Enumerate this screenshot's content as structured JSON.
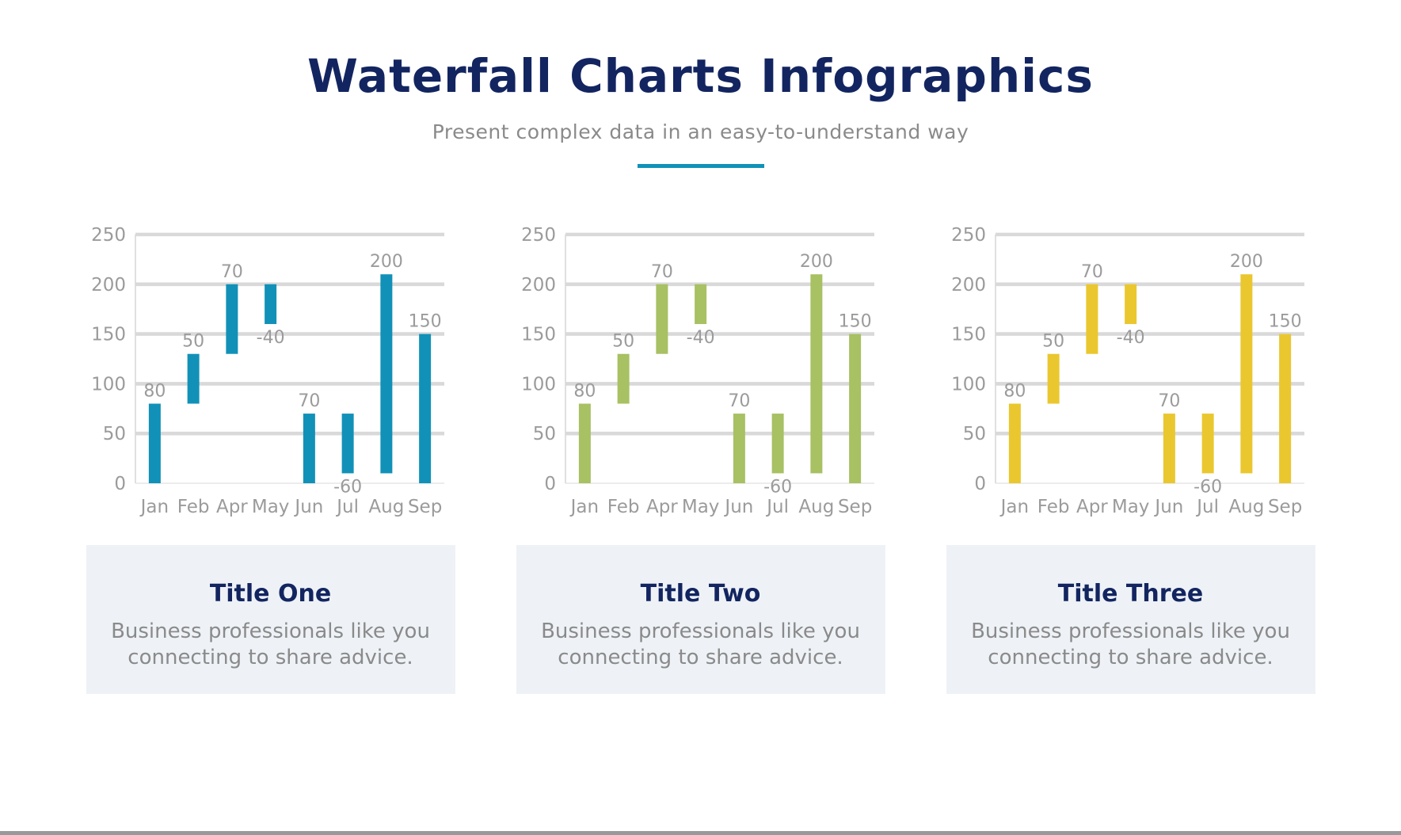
{
  "page": {
    "title": "Waterfall Charts Infographics",
    "subtitle": "Present complex data in an easy-to-understand way"
  },
  "colors": {
    "title_navy": "#132560",
    "subtitle_gray": "#8a8a8a",
    "accent_teal": "#1192b8",
    "gridline": "#d9d9d9",
    "zero_line": "#e6e6e6",
    "axis_text": "#9b9b9b",
    "chart1_bar": "#1191b8",
    "chart2_bar": "#a7c163",
    "chart3_bar": "#eac72e",
    "card_bg": "#eef2f6",
    "card_title": "#132560",
    "card_text": "#8a8a8a",
    "bottom_strip": "#98999b"
  },
  "chart_data": [
    {
      "type": "bar",
      "subtype": "waterfall",
      "title": "",
      "xlabel": "",
      "ylabel": "",
      "ylim": [
        0,
        250
      ],
      "y_ticks": [
        0,
        50,
        100,
        150,
        200,
        250
      ],
      "grid": true,
      "legend": "none",
      "bar_color": "#1191b8",
      "categories": [
        "Jan",
        "Feb",
        "Apr",
        "May",
        "Jun",
        "Jul",
        "Aug",
        "Sep"
      ],
      "bars": [
        {
          "category": "Jan",
          "start": 0,
          "end": 80,
          "delta": 80,
          "label": "80",
          "label_position": "above"
        },
        {
          "category": "Feb",
          "start": 80,
          "end": 130,
          "delta": 50,
          "label": "50",
          "label_position": "above"
        },
        {
          "category": "Apr",
          "start": 130,
          "end": 200,
          "delta": 70,
          "label": "70",
          "label_position": "above"
        },
        {
          "category": "May",
          "start": 160,
          "end": 200,
          "delta": -40,
          "label": "-40",
          "label_position": "below"
        },
        {
          "category": "Jun",
          "start": 0,
          "end": 70,
          "delta": 70,
          "label": "70",
          "label_position": "above"
        },
        {
          "category": "Jul",
          "start": 10,
          "end": 70,
          "delta": -60,
          "label": "-60",
          "label_position": "below"
        },
        {
          "category": "Aug",
          "start": 10,
          "end": 210,
          "delta": 200,
          "label": "200",
          "label_position": "above"
        },
        {
          "category": "Sep",
          "start": 0,
          "end": 150,
          "delta": 150,
          "label": "150",
          "label_position": "above"
        }
      ]
    },
    {
      "type": "bar",
      "subtype": "waterfall",
      "title": "",
      "xlabel": "",
      "ylabel": "",
      "ylim": [
        0,
        250
      ],
      "y_ticks": [
        0,
        50,
        100,
        150,
        200,
        250
      ],
      "grid": true,
      "legend": "none",
      "bar_color": "#a7c163",
      "categories": [
        "Jan",
        "Feb",
        "Apr",
        "May",
        "Jun",
        "Jul",
        "Aug",
        "Sep"
      ],
      "bars": [
        {
          "category": "Jan",
          "start": 0,
          "end": 80,
          "delta": 80,
          "label": "80",
          "label_position": "above"
        },
        {
          "category": "Feb",
          "start": 80,
          "end": 130,
          "delta": 50,
          "label": "50",
          "label_position": "above"
        },
        {
          "category": "Apr",
          "start": 130,
          "end": 200,
          "delta": 70,
          "label": "70",
          "label_position": "above"
        },
        {
          "category": "May",
          "start": 160,
          "end": 200,
          "delta": -40,
          "label": "-40",
          "label_position": "below"
        },
        {
          "category": "Jun",
          "start": 0,
          "end": 70,
          "delta": 70,
          "label": "70",
          "label_position": "above"
        },
        {
          "category": "Jul",
          "start": 10,
          "end": 70,
          "delta": -60,
          "label": "-60",
          "label_position": "below"
        },
        {
          "category": "Aug",
          "start": 10,
          "end": 210,
          "delta": 200,
          "label": "200",
          "label_position": "above"
        },
        {
          "category": "Sep",
          "start": 0,
          "end": 150,
          "delta": 150,
          "label": "150",
          "label_position": "above"
        }
      ]
    },
    {
      "type": "bar",
      "subtype": "waterfall",
      "title": "",
      "xlabel": "",
      "ylabel": "",
      "ylim": [
        0,
        250
      ],
      "y_ticks": [
        0,
        50,
        100,
        150,
        200,
        250
      ],
      "grid": true,
      "legend": "none",
      "bar_color": "#eac72e",
      "categories": [
        "Jan",
        "Feb",
        "Apr",
        "May",
        "Jun",
        "Jul",
        "Aug",
        "Sep"
      ],
      "bars": [
        {
          "category": "Jan",
          "start": 0,
          "end": 80,
          "delta": 80,
          "label": "80",
          "label_position": "above"
        },
        {
          "category": "Feb",
          "start": 80,
          "end": 130,
          "delta": 50,
          "label": "50",
          "label_position": "above"
        },
        {
          "category": "Apr",
          "start": 130,
          "end": 200,
          "delta": 70,
          "label": "70",
          "label_position": "above"
        },
        {
          "category": "May",
          "start": 160,
          "end": 200,
          "delta": -40,
          "label": "-40",
          "label_position": "below"
        },
        {
          "category": "Jun",
          "start": 0,
          "end": 70,
          "delta": 70,
          "label": "70",
          "label_position": "above"
        },
        {
          "category": "Jul",
          "start": 10,
          "end": 70,
          "delta": -60,
          "label": "-60",
          "label_position": "below"
        },
        {
          "category": "Aug",
          "start": 10,
          "end": 210,
          "delta": 200,
          "label": "200",
          "label_position": "above"
        },
        {
          "category": "Sep",
          "start": 0,
          "end": 150,
          "delta": 150,
          "label": "150",
          "label_position": "above"
        }
      ]
    }
  ],
  "cards": [
    {
      "title": "Title One",
      "body": "Business professionals like you connecting to share advice."
    },
    {
      "title": "Title Two",
      "body": "Business professionals like you connecting to share advice."
    },
    {
      "title": "Title Three",
      "body": "Business professionals like you connecting to share advice."
    }
  ]
}
